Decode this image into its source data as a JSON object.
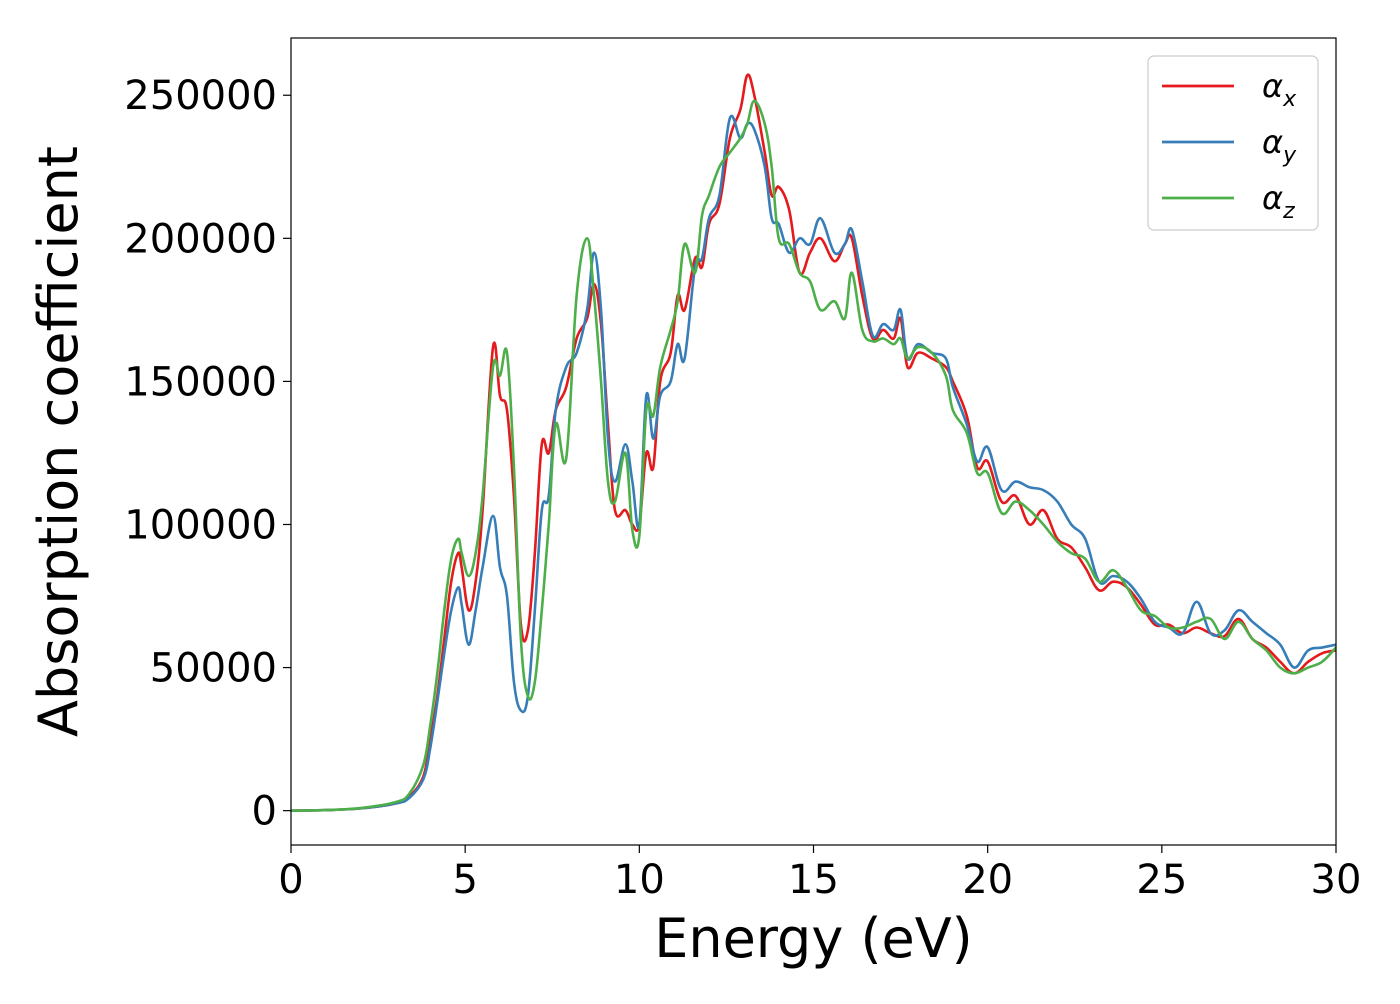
{
  "chart_data": {
    "type": "line",
    "title": "",
    "xlabel": "Energy (eV)",
    "ylabel": "Absorption coefficient",
    "xlim": [
      0,
      30
    ],
    "ylim": [
      -12000,
      270000
    ],
    "xticks": [
      0,
      5,
      10,
      15,
      20,
      25,
      30
    ],
    "xtick_labels": [
      "0",
      "5",
      "10",
      "15",
      "20",
      "25",
      "30"
    ],
    "yticks": [
      0,
      50000,
      100000,
      150000,
      200000,
      250000
    ],
    "ytick_labels": [
      "0",
      "50000",
      "100000",
      "150000",
      "200000",
      "250000"
    ],
    "grid": false,
    "legend_position": "top-right",
    "series": [
      {
        "name": "αx",
        "legend_base": "α",
        "legend_sub": "x",
        "color": "#e41a1c",
        "x": [
          0,
          1,
          2,
          3,
          3.4,
          3.8,
          4.0,
          4.2,
          4.4,
          4.6,
          4.8,
          4.9,
          5.1,
          5.3,
          5.5,
          5.8,
          6.0,
          6.2,
          6.4,
          6.6,
          6.8,
          7.0,
          7.2,
          7.4,
          7.6,
          7.9,
          8.2,
          8.5,
          8.7,
          8.9,
          9.1,
          9.3,
          9.6,
          9.8,
          10.0,
          10.2,
          10.4,
          10.6,
          10.9,
          11.1,
          11.3,
          11.6,
          11.8,
          12.0,
          12.3,
          12.6,
          12.9,
          13.1,
          13.3,
          13.6,
          13.8,
          14.0,
          14.3,
          14.6,
          14.9,
          15.2,
          15.6,
          15.9,
          16.1,
          16.4,
          16.7,
          17.0,
          17.3,
          17.5,
          17.7,
          18.0,
          18.4,
          18.8,
          19.0,
          19.4,
          19.7,
          20.0,
          20.4,
          20.8,
          21.2,
          21.6,
          22.0,
          22.4,
          22.8,
          23.2,
          23.6,
          24.0,
          24.4,
          24.8,
          25.2,
          25.6,
          26.0,
          26.4,
          26.8,
          27.2,
          27.6,
          28.0,
          28.4,
          28.8,
          29.2,
          29.6,
          30.0
        ],
        "values": [
          0,
          200,
          800,
          2500,
          5000,
          12000,
          25000,
          40000,
          60000,
          80000,
          90000,
          85000,
          70000,
          80000,
          105000,
          162000,
          145000,
          140000,
          110000,
          65000,
          63000,
          90000,
          128000,
          125000,
          140000,
          148000,
          165000,
          172000,
          184000,
          170000,
          135000,
          105000,
          105000,
          100000,
          100000,
          125000,
          120000,
          150000,
          160000,
          180000,
          175000,
          193000,
          190000,
          205000,
          212000,
          235000,
          245000,
          257000,
          250000,
          230000,
          215000,
          218000,
          210000,
          188000,
          195000,
          200000,
          192000,
          198000,
          200000,
          180000,
          165000,
          168000,
          165000,
          172000,
          155000,
          160000,
          158000,
          155000,
          150000,
          138000,
          120000,
          122000,
          108000,
          110000,
          100000,
          105000,
          95000,
          92000,
          85000,
          77000,
          80000,
          78000,
          72000,
          65000,
          65000,
          62000,
          64000,
          62000,
          61000,
          67000,
          60000,
          57000,
          52000,
          48000,
          52000,
          55000,
          56000
        ]
      },
      {
        "name": "αy",
        "legend_base": "α",
        "legend_sub": "y",
        "color": "#377eb8",
        "x": [
          0,
          1,
          2,
          3,
          3.4,
          3.8,
          4.0,
          4.2,
          4.4,
          4.6,
          4.8,
          4.9,
          5.1,
          5.3,
          5.5,
          5.8,
          6.0,
          6.2,
          6.4,
          6.6,
          6.8,
          7.0,
          7.2,
          7.4,
          7.6,
          7.9,
          8.2,
          8.5,
          8.7,
          8.9,
          9.1,
          9.3,
          9.6,
          9.8,
          10.0,
          10.2,
          10.4,
          10.6,
          10.9,
          11.1,
          11.3,
          11.6,
          11.8,
          12.0,
          12.3,
          12.6,
          12.9,
          13.1,
          13.3,
          13.6,
          13.8,
          14.0,
          14.3,
          14.6,
          14.9,
          15.2,
          15.6,
          15.9,
          16.1,
          16.4,
          16.7,
          17.0,
          17.3,
          17.5,
          17.7,
          18.0,
          18.4,
          18.8,
          19.0,
          19.4,
          19.7,
          20.0,
          20.4,
          20.8,
          21.2,
          21.6,
          22.0,
          22.4,
          22.8,
          23.2,
          23.6,
          24.0,
          24.4,
          24.8,
          25.2,
          25.6,
          26.0,
          26.4,
          26.8,
          27.2,
          27.6,
          28.0,
          28.4,
          28.8,
          29.2,
          29.6,
          30.0
        ],
        "values": [
          0,
          200,
          800,
          2500,
          4500,
          11000,
          22000,
          38000,
          55000,
          70000,
          78000,
          72000,
          58000,
          70000,
          85000,
          103000,
          85000,
          75000,
          45000,
          35000,
          40000,
          70000,
          105000,
          110000,
          140000,
          155000,
          160000,
          175000,
          195000,
          175000,
          130000,
          115000,
          128000,
          115000,
          100000,
          145000,
          130000,
          145000,
          150000,
          163000,
          158000,
          190000,
          193000,
          207000,
          215000,
          242000,
          235000,
          240000,
          238000,
          225000,
          207000,
          205000,
          195000,
          200000,
          198000,
          207000,
          195000,
          198000,
          203000,
          185000,
          166000,
          170000,
          168000,
          175000,
          158000,
          163000,
          160000,
          158000,
          148000,
          135000,
          122000,
          127000,
          112000,
          115000,
          113000,
          112000,
          108000,
          100000,
          95000,
          80000,
          82000,
          80000,
          74000,
          66000,
          64000,
          62000,
          73000,
          62000,
          63000,
          70000,
          66000,
          62000,
          58000,
          50000,
          56000,
          57000,
          58000
        ]
      },
      {
        "name": "αz",
        "legend_base": "α",
        "legend_sub": "z",
        "color": "#4daf4a",
        "x": [
          0,
          1,
          2,
          3,
          3.4,
          3.8,
          4.0,
          4.2,
          4.4,
          4.6,
          4.8,
          4.9,
          5.1,
          5.3,
          5.5,
          5.8,
          6.0,
          6.2,
          6.4,
          6.6,
          6.8,
          7.0,
          7.2,
          7.4,
          7.6,
          7.9,
          8.2,
          8.5,
          8.7,
          8.9,
          9.1,
          9.3,
          9.6,
          9.8,
          10.0,
          10.2,
          10.4,
          10.6,
          10.9,
          11.1,
          11.3,
          11.6,
          11.8,
          12.0,
          12.3,
          12.6,
          12.9,
          13.1,
          13.3,
          13.6,
          13.8,
          14.0,
          14.3,
          14.6,
          14.9,
          15.2,
          15.6,
          15.9,
          16.1,
          16.4,
          16.7,
          17.0,
          17.3,
          17.5,
          17.7,
          18.0,
          18.4,
          18.8,
          19.0,
          19.4,
          19.7,
          20.0,
          20.4,
          20.8,
          21.2,
          21.6,
          22.0,
          22.4,
          22.8,
          23.2,
          23.6,
          24.0,
          24.4,
          24.8,
          25.2,
          25.6,
          26.0,
          26.4,
          26.8,
          27.2,
          27.6,
          28.0,
          28.4,
          28.8,
          29.2,
          29.6,
          30.0
        ],
        "values": [
          0,
          200,
          900,
          3000,
          6000,
          16000,
          30000,
          48000,
          70000,
          88000,
          95000,
          90000,
          82000,
          90000,
          110000,
          155000,
          152000,
          160000,
          120000,
          60000,
          40000,
          45000,
          70000,
          100000,
          135000,
          123000,
          180000,
          200000,
          180000,
          150000,
          115000,
          108000,
          125000,
          98000,
          96000,
          140000,
          138000,
          155000,
          168000,
          178000,
          198000,
          188000,
          208000,
          215000,
          225000,
          230000,
          235000,
          240000,
          248000,
          240000,
          225000,
          200000,
          198000,
          188000,
          185000,
          175000,
          178000,
          172000,
          188000,
          168000,
          164000,
          165000,
          163000,
          165000,
          158000,
          162000,
          160000,
          152000,
          140000,
          132000,
          118000,
          118000,
          104000,
          108000,
          105000,
          100000,
          94000,
          90000,
          88000,
          80000,
          84000,
          78000,
          70000,
          68000,
          64000,
          64000,
          66000,
          67000,
          60000,
          66000,
          60000,
          56000,
          50000,
          48000,
          50000,
          52000,
          57000
        ]
      }
    ]
  }
}
